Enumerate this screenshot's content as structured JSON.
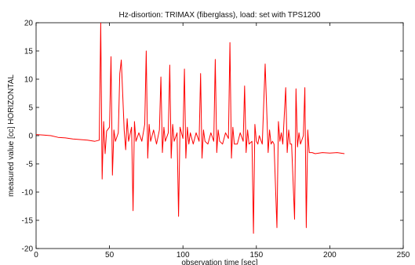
{
  "chart_data": {
    "type": "line",
    "title": "Hz-disortion: TRIMAX (fiberglass), load: set with TPS1200",
    "xlabel": "observation time [sec]",
    "ylabel": "measured value [cc] HORIZONTAL",
    "xlim": [
      0,
      250
    ],
    "ylim": [
      -20,
      20
    ],
    "xticks": [
      0,
      50,
      100,
      150,
      200,
      250
    ],
    "yticks": [
      -20,
      -15,
      -10,
      -5,
      0,
      5,
      10,
      15,
      20
    ],
    "grid": false,
    "legend": "none",
    "series": [
      {
        "color": "#ff0000",
        "x": [
          0,
          5,
          10,
          15,
          20,
          25,
          30,
          35,
          40,
          43,
          44,
          45,
          46,
          47,
          48,
          50,
          51,
          52,
          53,
          54,
          56,
          57,
          58,
          60,
          61,
          62,
          63,
          65,
          66,
          67,
          68,
          70,
          72,
          74,
          75,
          76,
          77,
          78,
          79,
          80,
          82,
          84,
          85,
          86,
          87,
          88,
          90,
          91,
          92,
          93,
          94,
          96,
          97,
          98,
          100,
          101,
          102,
          103,
          104,
          105,
          107,
          109,
          111,
          112,
          113,
          114,
          115,
          117,
          119,
          121,
          122,
          123,
          124,
          125,
          127,
          129,
          131,
          132,
          133,
          134,
          135,
          137,
          139,
          141,
          142,
          143,
          144,
          145,
          147,
          148,
          149,
          150,
          151,
          152,
          154,
          156,
          158,
          159,
          160,
          161,
          162,
          164,
          165,
          166,
          167,
          168,
          170,
          171,
          172,
          173,
          174,
          176,
          177,
          178,
          179,
          180,
          182,
          183,
          184,
          185,
          186,
          188,
          190,
          195,
          200,
          205,
          210
        ],
        "y": [
          0.2,
          0.1,
          0.0,
          -0.3,
          -0.4,
          -0.6,
          -0.7,
          -0.8,
          -1.0,
          -0.8,
          20.0,
          -7.7,
          2.5,
          -3.2,
          0.8,
          1.5,
          14.0,
          -7.0,
          1.0,
          -1.0,
          0.5,
          11.0,
          13.4,
          1.0,
          -2.5,
          3.0,
          -1.0,
          1.5,
          -13.3,
          2.5,
          -1.0,
          0.5,
          -1.0,
          2.0,
          15.0,
          -4.0,
          2.0,
          -1.0,
          0.0,
          1.0,
          -1.5,
          1.0,
          10.4,
          -3.0,
          1.5,
          -1.0,
          0.5,
          12.5,
          -4.0,
          2.0,
          -1.0,
          0.5,
          -14.3,
          1.5,
          -0.5,
          11.8,
          -4.0,
          1.5,
          -1.5,
          0.5,
          -1.5,
          0.5,
          -1.0,
          11.0,
          -4.0,
          1.0,
          -1.0,
          -1.5,
          0.5,
          -1.0,
          13.5,
          -3.0,
          1.0,
          -1.0,
          -1.5,
          0.5,
          -0.5,
          16.5,
          -4.0,
          1.5,
          -1.5,
          -1.5,
          0.5,
          -1.0,
          8.8,
          -3.0,
          1.0,
          -1.5,
          -1.0,
          -17.3,
          2.0,
          -1.0,
          -1.5,
          0.0,
          -1.5,
          12.7,
          -3.0,
          1.0,
          -1.5,
          -1.0,
          -1.5,
          -16.3,
          2.5,
          -1.0,
          0.5,
          -1.5,
          8.5,
          -3.0,
          1.0,
          -1.5,
          -1.5,
          -14.8,
          8.3,
          -2.0,
          0.5,
          -1.5,
          0.0,
          8.5,
          -16.3,
          1.0,
          -3.0,
          -3.0,
          -3.2,
          -3.0,
          -3.1,
          -3.0,
          -3.2
        ]
      }
    ]
  }
}
